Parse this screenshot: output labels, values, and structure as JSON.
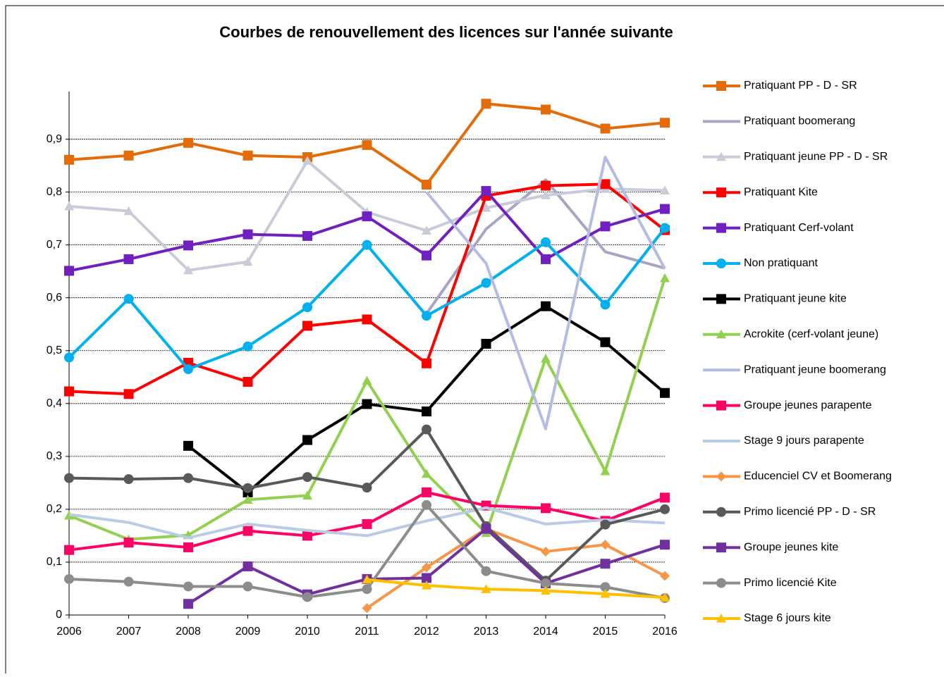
{
  "chart_data": {
    "type": "line",
    "title": "Courbes de renouvellement des licences sur l'année suivante",
    "categories": [
      "2006",
      "2007",
      "2008",
      "2009",
      "2010",
      "2011",
      "2012",
      "2013",
      "2014",
      "2015",
      "2016"
    ],
    "ylim": [
      0,
      0.99
    ],
    "yticks": [
      0,
      {
        "value": 0.1,
        "label": "0,1"
      },
      {
        "value": 0.2,
        "label": "0,2"
      },
      {
        "value": 0.3,
        "label": "0,3"
      },
      {
        "value": 0.4,
        "label": "0,4"
      },
      {
        "value": 0.5,
        "label": "0,5"
      },
      {
        "value": 0.6,
        "label": "0,6"
      },
      {
        "value": 0.7,
        "label": "0,7"
      },
      {
        "value": 0.8,
        "label": "0,8"
      },
      {
        "value": 0.9,
        "label": "0,9"
      }
    ],
    "grid": true,
    "legend": "right",
    "series": [
      {
        "name": "Pratiquant PP - D - SR",
        "color": "#e36c09",
        "marker": "square",
        "values": [
          0.861,
          0.869,
          0.893,
          0.869,
          0.866,
          0.889,
          0.814,
          0.967,
          0.956,
          0.92,
          0.931
        ]
      },
      {
        "name": "Pratiquant boomerang",
        "color": "#a6a6c4",
        "marker": "none",
        "values": [
          null,
          null,
          null,
          null,
          null,
          null,
          0.57,
          0.73,
          0.823,
          0.687,
          0.656
        ]
      },
      {
        "name": "Pratiquant jeune PP - D - SR",
        "color": "#c8ccd8",
        "marker": "triangle",
        "values": [
          0.773,
          0.764,
          0.652,
          0.668,
          0.859,
          0.762,
          0.727,
          0.77,
          0.794,
          0.806,
          0.803
        ]
      },
      {
        "name": "Pratiquant Kite",
        "color": "#ff0000",
        "marker": "square",
        "values": [
          0.423,
          0.418,
          0.477,
          0.441,
          0.547,
          0.559,
          0.476,
          0.793,
          0.812,
          0.815,
          0.728
        ]
      },
      {
        "name": "Pratiquant Cerf-volant",
        "color": "#7020c0",
        "marker": "square",
        "values": [
          0.651,
          0.673,
          0.699,
          0.72,
          0.717,
          0.754,
          0.68,
          0.802,
          0.673,
          0.735,
          0.768
        ]
      },
      {
        "name": "Non pratiquant",
        "color": "#00b0f0",
        "marker": "circle",
        "values": [
          0.487,
          0.598,
          0.465,
          0.508,
          0.582,
          0.7,
          0.566,
          0.628,
          0.705,
          0.587,
          0.732
        ]
      },
      {
        "name": "Pratiquant jeune kite",
        "color": "#000000",
        "marker": "square",
        "values": [
          null,
          null,
          0.32,
          0.232,
          0.331,
          0.399,
          0.385,
          0.513,
          0.584,
          0.516,
          0.42
        ]
      },
      {
        "name": "Acrokite (cerf-volant jeune)",
        "color": "#92d050",
        "marker": "triangle",
        "values": [
          0.188,
          0.143,
          0.151,
          0.218,
          0.226,
          0.443,
          0.267,
          0.155,
          0.485,
          0.272,
          0.637
        ]
      },
      {
        "name": "Pratiquant jeune boomerang",
        "color": "#b4bce4",
        "marker": "none",
        "values": [
          null,
          null,
          null,
          null,
          null,
          null,
          0.8,
          0.665,
          0.352,
          0.866,
          0.655
        ]
      },
      {
        "name": "Groupe jeunes parapente",
        "color": "#ff0066",
        "marker": "square",
        "values": [
          0.123,
          0.137,
          0.128,
          0.159,
          0.15,
          0.172,
          0.232,
          0.207,
          0.202,
          0.178,
          0.222
        ]
      },
      {
        "name": "Stage 9 jours parapente",
        "color": "#b8cce4",
        "marker": "none",
        "values": [
          0.19,
          0.175,
          0.146,
          0.172,
          0.16,
          0.15,
          0.178,
          0.203,
          0.172,
          0.18,
          0.174
        ]
      },
      {
        "name": "Educenciel CV et Boomerang",
        "color": "#f79646",
        "marker": "diamond",
        "values": [
          null,
          null,
          null,
          null,
          null,
          0.013,
          0.09,
          0.163,
          0.12,
          0.133,
          0.074
        ]
      },
      {
        "name": "Primo licencié PP - D - SR",
        "color": "#595959",
        "marker": "circle",
        "values": [
          0.259,
          0.257,
          0.259,
          0.24,
          0.261,
          0.241,
          0.351,
          0.168,
          0.065,
          0.171,
          0.2
        ]
      },
      {
        "name": "Groupe jeunes kite",
        "color": "#7030a0",
        "marker": "square",
        "values": [
          null,
          null,
          0.021,
          0.092,
          0.039,
          0.068,
          0.07,
          0.163,
          0.06,
          0.097,
          0.133
        ]
      },
      {
        "name": "Primo licencié Kite",
        "color": "#8c8c8c",
        "marker": "circle",
        "values": [
          0.068,
          0.063,
          0.054,
          0.054,
          0.034,
          0.049,
          0.208,
          0.083,
          0.06,
          0.053,
          0.032
        ]
      },
      {
        "name": "Stage 6 jours kite",
        "color": "#ffc000",
        "marker": "triangle",
        "values": [
          null,
          null,
          null,
          null,
          null,
          0.067,
          0.056,
          0.049,
          0.046,
          0.04,
          0.033
        ]
      }
    ]
  }
}
